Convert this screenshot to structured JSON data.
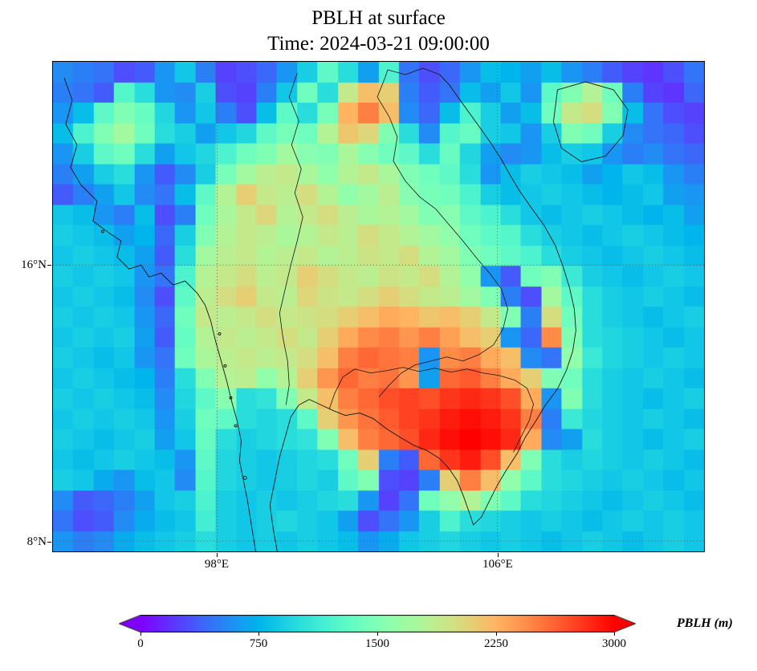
{
  "figure": {
    "title_line1": "PBLH at surface",
    "title_line2": "Time: 2024-03-21 09:00:00"
  },
  "axes": {
    "x_ticks": [
      {
        "value": 98,
        "label": "98°E"
      },
      {
        "value": 106,
        "label": "106°E"
      }
    ],
    "y_ticks": [
      {
        "value": 16,
        "label": "16°N"
      },
      {
        "value": 8,
        "label": "8°N"
      }
    ]
  },
  "colorbar": {
    "label": "PBLH (m)",
    "min": 0,
    "max": 3000,
    "ticks": [
      0,
      750,
      1500,
      2250,
      3000
    ],
    "tick_labels": [
      "0",
      "750",
      "1500",
      "2250",
      "3000"
    ],
    "extend": "both",
    "colormap": "rainbow",
    "end_colors": {
      "low": "#8000ff",
      "high": "#ff0000"
    }
  },
  "chart_data": {
    "type": "heatmap",
    "title": "PBLH at surface",
    "subtitle": "Time: 2024-03-21 09:00:00",
    "variable": "PBLH",
    "units": "m",
    "colormap": "rainbow",
    "vmin": 0,
    "vmax": 3000,
    "lon_range": [
      93.3,
      111.9
    ],
    "lat_range": [
      7.7,
      21.9
    ],
    "gridline_lons": [
      98,
      106
    ],
    "gridline_lats": [
      16,
      8
    ],
    "grid": {
      "ncols": 32,
      "nrows": 24,
      "values": [
        [
          550,
          500,
          450,
          300,
          350,
          600,
          850,
          500,
          250,
          300,
          400,
          600,
          900,
          1300,
          1000,
          650,
          1200,
          450,
          300,
          400,
          600,
          800,
          750,
          650,
          800,
          600,
          500,
          350,
          250,
          200,
          300,
          450
        ],
        [
          500,
          450,
          350,
          1250,
          1000,
          600,
          550,
          900,
          300,
          250,
          500,
          850,
          1400,
          1000,
          1900,
          2200,
          2100,
          500,
          350,
          450,
          800,
          650,
          850,
          600,
          1300,
          1500,
          1800,
          1400,
          500,
          250,
          200,
          400
        ],
        [
          600,
          800,
          1300,
          1500,
          1350,
          950,
          600,
          850,
          500,
          300,
          800,
          1300,
          1000,
          1450,
          2250,
          2500,
          2200,
          550,
          400,
          800,
          1200,
          900,
          650,
          800,
          1400,
          1900,
          2000,
          1500,
          800,
          450,
          300,
          250
        ],
        [
          800,
          1200,
          1500,
          1700,
          1400,
          1000,
          900,
          650,
          850,
          950,
          1300,
          1450,
          1400,
          1800,
          2150,
          2050,
          1500,
          1000,
          550,
          1250,
          1350,
          900,
          850,
          600,
          900,
          1500,
          1400,
          900,
          550,
          450,
          400,
          300
        ],
        [
          600,
          900,
          1300,
          1400,
          1000,
          650,
          850,
          950,
          1200,
          1400,
          1500,
          1700,
          1550,
          1500,
          1750,
          1550,
          1400,
          1300,
          1000,
          1350,
          950,
          650,
          550,
          600,
          800,
          900,
          850,
          600,
          500,
          550,
          450,
          400
        ],
        [
          500,
          650,
          900,
          1000,
          600,
          350,
          550,
          900,
          1450,
          1700,
          1850,
          1900,
          1750,
          1600,
          1800,
          1900,
          1750,
          1500,
          1400,
          1300,
          1000,
          600,
          800,
          900,
          850,
          800,
          650,
          750,
          850,
          800,
          600,
          500
        ],
        [
          350,
          500,
          650,
          850,
          550,
          450,
          800,
          1300,
          1800,
          2100,
          1900,
          1850,
          2000,
          1800,
          1600,
          1700,
          1850,
          1550,
          1450,
          1400,
          1200,
          900,
          800,
          850,
          900,
          850,
          800,
          750,
          800,
          850,
          650,
          600
        ],
        [
          850,
          800,
          600,
          500,
          800,
          300,
          500,
          1400,
          1750,
          1900,
          2050,
          1800,
          1900,
          2000,
          1850,
          1750,
          1800,
          1700,
          1500,
          1550,
          1300,
          1200,
          1000,
          850,
          800,
          850,
          900,
          850,
          800,
          750,
          800,
          650
        ],
        [
          900,
          850,
          800,
          650,
          750,
          400,
          900,
          1500,
          1800,
          1900,
          1850,
          1750,
          1800,
          1900,
          1850,
          2000,
          1900,
          1800,
          1700,
          1600,
          1400,
          1300,
          1250,
          1000,
          900,
          850,
          800,
          850,
          900,
          850,
          800,
          750
        ],
        [
          850,
          900,
          850,
          800,
          650,
          350,
          1000,
          1700,
          1850,
          1900,
          1800,
          1850,
          1900,
          1800,
          1850,
          1950,
          1900,
          2000,
          1800,
          1700,
          1500,
          1400,
          1300,
          1200,
          1000,
          900,
          850,
          800,
          850,
          900,
          850,
          800
        ],
        [
          900,
          850,
          900,
          850,
          600,
          450,
          1200,
          1800,
          1900,
          2000,
          1850,
          1900,
          2100,
          2000,
          1900,
          1850,
          1950,
          1900,
          2000,
          1800,
          1600,
          600,
          350,
          1400,
          1500,
          1100,
          900,
          850,
          800,
          850,
          900,
          850
        ],
        [
          850,
          900,
          850,
          800,
          550,
          300,
          1300,
          1850,
          2000,
          2100,
          1900,
          1850,
          2050,
          1950,
          1900,
          2000,
          2100,
          2000,
          1900,
          1850,
          1700,
          1500,
          500,
          300,
          1700,
          1300,
          1000,
          900,
          850,
          900,
          850,
          800
        ],
        [
          900,
          850,
          900,
          850,
          600,
          400,
          1400,
          1900,
          1850,
          1900,
          2000,
          1900,
          1950,
          2000,
          2100,
          2200,
          2300,
          2250,
          2150,
          2200,
          2100,
          1900,
          1500,
          500,
          2000,
          1400,
          1000,
          900,
          850,
          800,
          850,
          900
        ],
        [
          850,
          900,
          850,
          900,
          650,
          350,
          1350,
          1800,
          1900,
          1850,
          1900,
          2000,
          1900,
          2100,
          2300,
          2450,
          2500,
          2400,
          2500,
          2350,
          2200,
          2100,
          600,
          400,
          2450,
          1500,
          1000,
          950,
          900,
          850,
          800,
          850
        ],
        [
          900,
          850,
          800,
          850,
          600,
          450,
          1400,
          1750,
          1850,
          1900,
          1850,
          1900,
          2000,
          2200,
          2500,
          2600,
          2550,
          2500,
          600,
          2450,
          2500,
          2300,
          2200,
          550,
          450,
          1600,
          1100,
          950,
          900,
          850,
          900,
          850
        ],
        [
          850,
          900,
          850,
          800,
          750,
          500,
          1000,
          1500,
          1800,
          1850,
          1600,
          1800,
          2100,
          2400,
          2600,
          2500,
          2550,
          2400,
          650,
          2600,
          2650,
          2500,
          2300,
          2100,
          1500,
          1400,
          1000,
          900,
          850,
          900,
          850,
          800
        ],
        [
          900,
          850,
          900,
          850,
          800,
          550,
          950,
          1300,
          1550,
          1000,
          1050,
          1500,
          1900,
          2200,
          2500,
          2600,
          2700,
          2750,
          2700,
          2800,
          2850,
          2800,
          2700,
          2300,
          600,
          1500,
          1000,
          900,
          850,
          800,
          850,
          900
        ],
        [
          850,
          900,
          850,
          900,
          850,
          600,
          900,
          1400,
          1300,
          1000,
          950,
          1000,
          1300,
          2100,
          2400,
          2550,
          2650,
          2750,
          2800,
          2900,
          2950,
          2900,
          2800,
          2500,
          500,
          1100,
          950,
          900,
          850,
          900,
          850,
          800
        ],
        [
          900,
          850,
          800,
          850,
          900,
          650,
          850,
          1350,
          1000,
          900,
          950,
          1000,
          1050,
          1500,
          2200,
          2500,
          2600,
          2700,
          2850,
          2950,
          3000,
          2950,
          2850,
          2300,
          550,
          650,
          1000,
          900,
          850,
          800,
          850,
          900
        ],
        [
          850,
          800,
          850,
          900,
          850,
          800,
          600,
          1300,
          950,
          900,
          850,
          900,
          950,
          1000,
          1400,
          2100,
          500,
          350,
          2600,
          2800,
          2900,
          2700,
          2200,
          1500,
          1000,
          900,
          950,
          900,
          850,
          900,
          850,
          800
        ],
        [
          900,
          850,
          700,
          600,
          800,
          850,
          550,
          1250,
          950,
          900,
          850,
          900,
          950,
          900,
          1300,
          1500,
          300,
          250,
          500,
          2100,
          2500,
          2200,
          1600,
          1300,
          1000,
          950,
          900,
          850,
          900,
          850,
          800,
          850
        ],
        [
          550,
          350,
          400,
          500,
          650,
          850,
          900,
          1200,
          900,
          850,
          900,
          850,
          900,
          950,
          1000,
          600,
          250,
          450,
          1400,
          1600,
          1800,
          1500,
          1300,
          1000,
          950,
          900,
          850,
          800,
          850,
          900,
          850,
          800
        ],
        [
          450,
          300,
          350,
          550,
          700,
          800,
          850,
          1150,
          900,
          850,
          900,
          950,
          900,
          850,
          650,
          300,
          450,
          600,
          900,
          1200,
          1000,
          950,
          900,
          850,
          900,
          850,
          800,
          850,
          900,
          850,
          900,
          850
        ],
        [
          600,
          500,
          550,
          700,
          800,
          850,
          900,
          1000,
          900,
          850,
          900,
          850,
          900,
          850,
          800,
          600,
          700,
          850,
          900,
          950,
          900,
          850,
          900,
          850,
          800,
          850,
          900,
          850,
          800,
          850,
          900,
          850
        ]
      ]
    }
  }
}
